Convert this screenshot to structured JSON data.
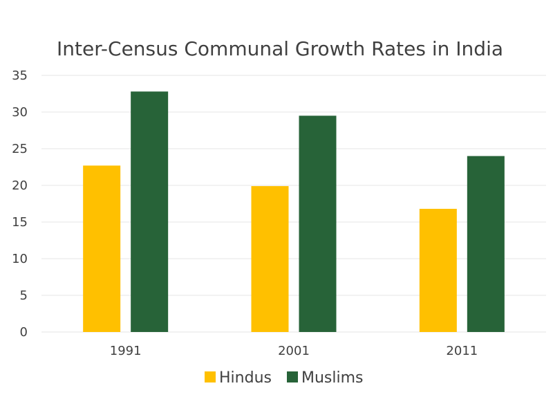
{
  "chart_data": {
    "type": "bar",
    "title": "Inter-Census Communal Growth Rates in India",
    "xlabel": "",
    "ylabel": "",
    "categories": [
      "1991",
      "2001",
      "2011"
    ],
    "series": [
      {
        "name": "Hindus",
        "color": "#FFC000",
        "values": [
          22.7,
          19.9,
          16.8
        ]
      },
      {
        "name": "Muslims",
        "color": "#276338",
        "values": [
          32.8,
          29.5,
          24.0
        ]
      }
    ],
    "ylim": [
      0,
      35
    ],
    "yticks": [
      "0",
      "5",
      "10",
      "15",
      "20",
      "25",
      "30",
      "35"
    ],
    "grid": true,
    "legend_position": "bottom"
  }
}
